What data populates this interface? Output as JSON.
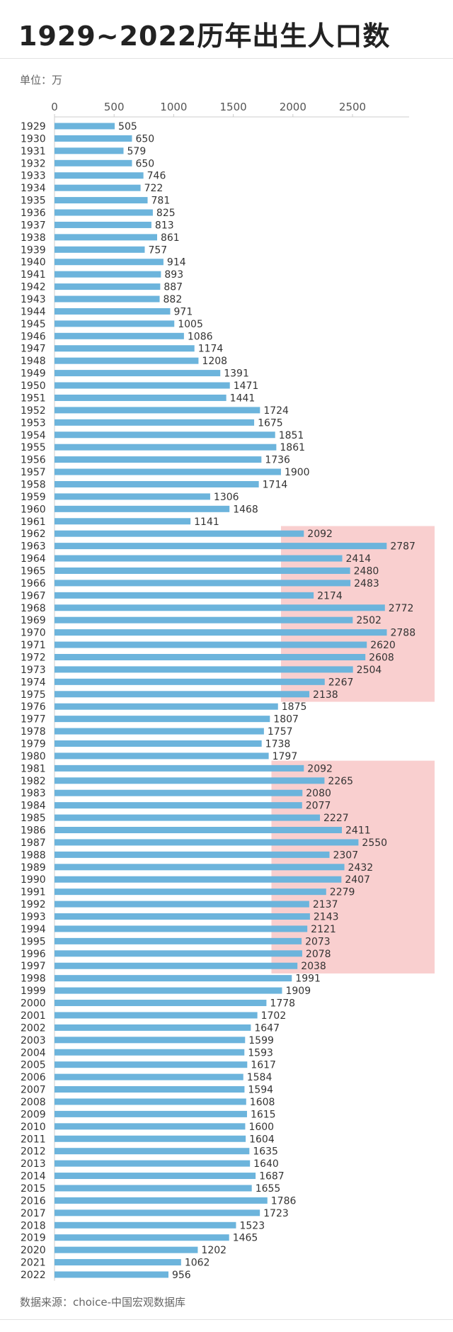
{
  "title": "1929~2022历年出生人口数",
  "unit_label": "单位：万",
  "source_label": "数据来源：choice-中国宏观数据库",
  "colors": {
    "bar": "#6cb4dc",
    "highlight": "#f9cfcf",
    "axis": "#cccccc"
  },
  "chart_data": {
    "type": "bar",
    "orientation": "horizontal",
    "title": "1929~2022历年出生人口数",
    "unit": "万",
    "xlim": [
      0,
      2900
    ],
    "xticks": [
      0,
      500,
      1000,
      1500,
      2000,
      2500
    ],
    "grid": false,
    "categories": [
      "1929",
      "1930",
      "1931",
      "1932",
      "1933",
      "1934",
      "1935",
      "1936",
      "1937",
      "1938",
      "1939",
      "1940",
      "1941",
      "1942",
      "1943",
      "1944",
      "1945",
      "1946",
      "1947",
      "1948",
      "1949",
      "1950",
      "1951",
      "1952",
      "1953",
      "1954",
      "1955",
      "1956",
      "1957",
      "1958",
      "1959",
      "1960",
      "1961",
      "1962",
      "1963",
      "1964",
      "1965",
      "1966",
      "1967",
      "1968",
      "1969",
      "1970",
      "1971",
      "1972",
      "1973",
      "1974",
      "1975",
      "1976",
      "1977",
      "1978",
      "1979",
      "1980",
      "1981",
      "1982",
      "1983",
      "1984",
      "1985",
      "1986",
      "1987",
      "1988",
      "1989",
      "1990",
      "1991",
      "1992",
      "1993",
      "1994",
      "1995",
      "1996",
      "1997",
      "1998",
      "1999",
      "2000",
      "2001",
      "2002",
      "2003",
      "2004",
      "2005",
      "2006",
      "2007",
      "2008",
      "2009",
      "2010",
      "2011",
      "2012",
      "2013",
      "2014",
      "2015",
      "2016",
      "2017",
      "2018",
      "2019",
      "2020",
      "2021",
      "2022"
    ],
    "values": [
      505,
      650,
      579,
      650,
      746,
      722,
      781,
      825,
      813,
      861,
      757,
      914,
      893,
      887,
      882,
      971,
      1005,
      1086,
      1174,
      1208,
      1391,
      1471,
      1441,
      1724,
      1675,
      1851,
      1861,
      1736,
      1900,
      1714,
      1306,
      1468,
      1141,
      2092,
      2787,
      2414,
      2480,
      2483,
      2174,
      2772,
      2502,
      2788,
      2620,
      2608,
      2504,
      2267,
      2138,
      1875,
      1807,
      1757,
      1738,
      1797,
      2092,
      2265,
      2080,
      2077,
      2227,
      2411,
      2550,
      2307,
      2432,
      2407,
      2279,
      2137,
      2143,
      2121,
      2073,
      2078,
      2038,
      1991,
      1909,
      1778,
      1702,
      1647,
      1599,
      1593,
      1617,
      1584,
      1594,
      1608,
      1615,
      1600,
      1604,
      1635,
      1640,
      1687,
      1655,
      1786,
      1723,
      1523,
      1465,
      1202,
      1062,
      956
    ],
    "highlight_ranges": [
      {
        "from": "1962",
        "to": "1975",
        "x_from": 1900
      },
      {
        "from": "1981",
        "to": "1997",
        "x_from": 1820
      }
    ]
  }
}
